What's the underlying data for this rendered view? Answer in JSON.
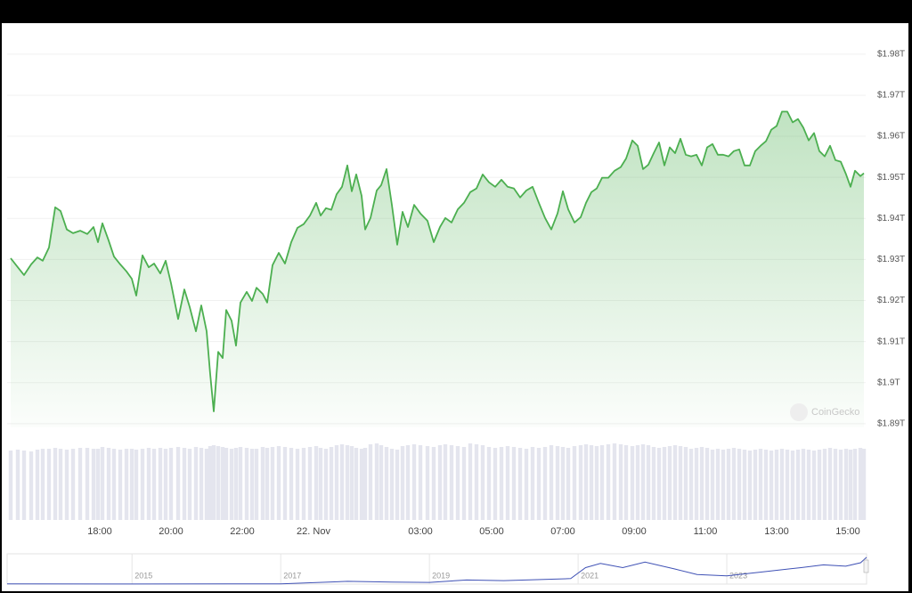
{
  "chart_data": [
    {
      "type": "area",
      "watermark": "CoinGecko",
      "x": [
        -8.5,
        -8.3,
        -8.125,
        -7.925,
        -7.75,
        -7.6,
        -7.425,
        -7.25,
        -7.1,
        -6.925,
        -6.75,
        -6.55,
        -6.35,
        -6.175,
        -6.05,
        -5.925,
        -5.75,
        -5.6,
        -5.425,
        -5.25,
        -5.1,
        -4.975,
        -4.8,
        -4.625,
        -4.475,
        -4.3,
        -4.15,
        -4,
        -3.8,
        -3.625,
        -3.475,
        -3.3,
        -3.15,
        -3,
        -2.9,
        -2.8,
        -2.675,
        -2.55,
        -2.45,
        -2.3,
        -2.175,
        -2.05,
        -1.875,
        -1.725,
        -1.6,
        -1.425,
        -1.3,
        -1.15,
        -0.975,
        -0.8,
        -0.625,
        -0.45,
        -0.275,
        -0.1,
        0.075,
        0.2,
        0.35,
        0.5,
        0.65,
        0.8,
        0.95,
        1.075,
        1.2,
        1.35,
        1.45,
        1.6,
        1.775,
        1.9,
        2.05,
        2.2,
        2.35,
        2.5,
        2.65,
        2.825,
        3,
        3.2,
        3.375,
        3.55,
        3.7,
        3.875,
        4.05,
        4.225,
        4.4,
        4.575,
        4.75,
        4.925,
        5.1,
        5.275,
        5.45,
        5.625,
        5.8,
        5.975,
        6.15,
        6.325,
        6.5,
        6.675,
        6.85,
        7,
        7.15,
        7.325,
        7.5,
        7.65,
        7.8,
        7.95,
        8.1,
        8.275,
        8.45,
        8.625,
        8.775,
        8.95,
        9.1,
        9.25,
        9.4,
        9.55,
        9.7,
        9.85,
        10,
        10.15,
        10.3,
        10.45,
        10.6,
        10.75,
        10.9,
        11.05,
        11.2,
        11.35,
        11.5,
        11.65,
        11.8,
        11.95,
        12.1,
        12.25,
        12.4,
        12.55,
        12.7,
        12.85,
        13,
        13.15,
        13.3,
        13.45,
        13.6,
        13.75,
        13.9,
        14.05,
        14.2,
        14.35,
        14.5,
        14.65,
        14.8,
        14.95,
        15.075,
        15.2,
        15.35,
        15.45
      ],
      "series": [
        {
          "color": "#4caf50",
          "values": [
            1.9303,
            1.9281,
            1.9262,
            1.9288,
            1.9305,
            1.9297,
            1.9329,
            1.9427,
            1.9418,
            1.9373,
            1.9364,
            1.937,
            1.9362,
            1.9379,
            1.9342,
            1.9388,
            1.9346,
            1.9307,
            1.9288,
            1.9271,
            1.9253,
            1.9212,
            1.931,
            1.9281,
            1.929,
            1.9266,
            1.9297,
            1.9242,
            1.9155,
            1.9227,
            1.9184,
            1.9125,
            1.9188,
            1.9125,
            1.9021,
            1.893,
            1.9075,
            1.906,
            1.9177,
            1.9151,
            1.909,
            1.9195,
            1.9221,
            1.9199,
            1.9231,
            1.9216,
            1.9195,
            1.9286,
            1.9316,
            1.929,
            1.9342,
            1.9377,
            1.9386,
            1.9407,
            1.9438,
            1.9407,
            1.9425,
            1.9421,
            1.9459,
            1.9477,
            1.9529,
            1.9466,
            1.9507,
            1.9455,
            1.9373,
            1.9401,
            1.9468,
            1.9481,
            1.952,
            1.9433,
            1.9336,
            1.9416,
            1.9379,
            1.9433,
            1.9412,
            1.9394,
            1.9342,
            1.9379,
            1.9401,
            1.939,
            1.9422,
            1.9438,
            1.9464,
            1.9473,
            1.9507,
            1.9488,
            1.9477,
            1.9494,
            1.9477,
            1.9473,
            1.9451,
            1.9468,
            1.9477,
            1.9438,
            1.9401,
            1.9373,
            1.9412,
            1.9466,
            1.9422,
            1.939,
            1.9403,
            1.9438,
            1.9464,
            1.9473,
            1.9499,
            1.9499,
            1.9516,
            1.9525,
            1.9546,
            1.959,
            1.9577,
            1.952,
            1.9531,
            1.9559,
            1.9585,
            1.9529,
            1.9573,
            1.9559,
            1.9594,
            1.9555,
            1.9551,
            1.9555,
            1.9529,
            1.9573,
            1.9581,
            1.9555,
            1.9555,
            1.9551,
            1.9564,
            1.9568,
            1.9529,
            1.9529,
            1.9564,
            1.9577,
            1.9588,
            1.9616,
            1.9625,
            1.966,
            1.966,
            1.9634,
            1.9642,
            1.9621,
            1.959,
            1.9608,
            1.9564,
            1.9551,
            1.9577,
            1.9542,
            1.9538,
            1.9507,
            1.9477,
            1.9516,
            1.9503,
            1.951
          ]
        },
        {
          "type": "bar",
          "axis": "y2",
          "color": "#e4e5ee",
          "values": [
            78,
            79,
            78,
            77,
            79,
            80,
            80,
            81,
            80,
            79,
            80,
            81,
            81,
            80,
            80,
            82,
            81,
            80,
            79,
            80,
            80,
            79,
            80,
            81,
            80,
            81,
            80,
            81,
            82,
            81,
            80,
            82,
            81,
            80,
            83,
            84,
            83,
            82,
            81,
            80,
            81,
            82,
            81,
            80,
            80,
            82,
            81,
            82,
            83,
            82,
            81,
            80,
            81,
            82,
            83,
            81,
            80,
            82,
            84,
            85,
            84,
            83,
            81,
            80,
            81,
            85,
            86,
            84,
            82,
            80,
            79,
            83,
            84,
            85,
            84,
            83,
            82,
            84,
            85,
            84,
            83,
            82,
            86,
            85,
            84,
            82,
            81,
            82,
            83,
            82,
            81,
            80,
            82,
            81,
            82,
            84,
            83,
            82,
            81,
            83,
            84,
            85,
            84,
            83,
            84,
            85,
            86,
            85,
            84,
            83,
            84,
            85,
            84,
            82,
            81,
            82,
            83,
            84,
            83,
            82,
            80,
            81,
            82,
            81,
            79,
            80,
            79,
            80,
            81,
            80,
            79,
            78,
            79,
            80,
            79,
            78,
            79,
            80,
            79,
            78,
            79,
            80,
            79,
            78,
            79,
            80,
            81,
            80,
            79,
            80,
            79,
            80,
            81,
            80
          ]
        }
      ],
      "xlim": [
        -8.5,
        15.45
      ],
      "xticks": [
        {
          "value": -6,
          "label": "18:00"
        },
        {
          "value": -4,
          "label": "20:00"
        },
        {
          "value": -2,
          "label": "22:00"
        },
        {
          "value": 0,
          "label": "22. Nov"
        },
        {
          "value": 3,
          "label": "03:00"
        },
        {
          "value": 5,
          "label": "05:00"
        },
        {
          "value": 7,
          "label": "07:00"
        },
        {
          "value": 9,
          "label": "09:00"
        },
        {
          "value": 11,
          "label": "11:00"
        },
        {
          "value": 13,
          "label": "13:00"
        },
        {
          "value": 15,
          "label": "15:00"
        }
      ],
      "ylim": [
        1.8891,
        1.9856
      ],
      "yticks": [
        {
          "value": 1.89,
          "label": "$1.89T"
        },
        {
          "value": 1.9,
          "label": "$1.9T"
        },
        {
          "value": 1.91,
          "label": "$1.91T"
        },
        {
          "value": 1.92,
          "label": "$1.92T"
        },
        {
          "value": 1.93,
          "label": "$1.93T"
        },
        {
          "value": 1.94,
          "label": "$1.94T"
        },
        {
          "value": 1.95,
          "label": "$1.95T"
        },
        {
          "value": 1.96,
          "label": "$1.96T"
        },
        {
          "value": 1.97,
          "label": "$1.97T"
        },
        {
          "value": 1.98,
          "label": "$1.98T"
        }
      ],
      "y2lim": [
        0,
        90
      ],
      "grid": true
    },
    {
      "type": "line",
      "color": "#3f51b5",
      "x": [
        2013.32,
        2015,
        2017,
        2017.9,
        2018.5,
        2019,
        2019.5,
        2020,
        2020.9,
        2021.1,
        2021.3,
        2021.6,
        2021.9,
        2022.3,
        2022.6,
        2023,
        2023.5,
        2024,
        2024.3,
        2024.6,
        2024.8,
        2024.88
      ],
      "values": [
        0.01,
        0.005,
        0.02,
        0.2,
        0.15,
        0.12,
        0.3,
        0.25,
        0.4,
        1.2,
        1.5,
        1.2,
        1.6,
        1.1,
        0.7,
        0.6,
        0.9,
        1.2,
        1.4,
        1.3,
        1.55,
        1.95
      ],
      "xlim": [
        2013.32,
        2024.88
      ],
      "xticks": [
        2015,
        2017,
        2019,
        2021,
        2023
      ],
      "ylim": [
        0,
        2.2
      ]
    }
  ]
}
